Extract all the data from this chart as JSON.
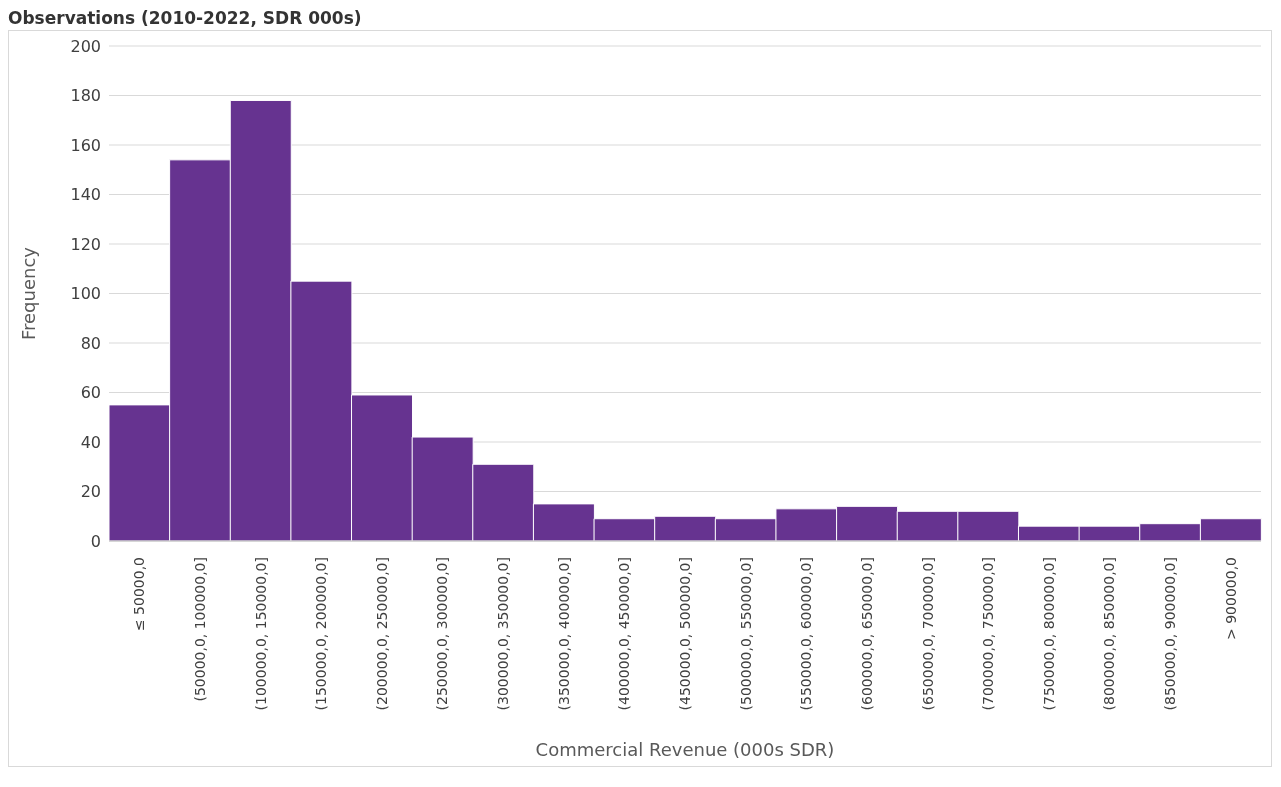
{
  "chart_data": {
    "type": "bar",
    "title": "Observations (2010-2022, SDR 000s)",
    "xlabel": "Commercial Revenue (000s SDR)",
    "ylabel": "Frequency",
    "categories": [
      "≤ 50000,0",
      "(50000,0, 100000,0]",
      "(100000,0, 150000,0]",
      "(150000,0, 200000,0]",
      "(200000,0, 250000,0]",
      "(250000,0, 300000,0]",
      "(300000,0, 350000,0]",
      "(350000,0, 400000,0]",
      "(400000,0, 450000,0]",
      "(450000,0, 500000,0]",
      "(500000,0, 550000,0]",
      "(550000,0, 600000,0]",
      "(600000,0, 650000,0]",
      "(650000,0, 700000,0]",
      "(700000,0, 750000,0]",
      "(750000,0, 800000,0]",
      "(800000,0, 850000,0]",
      "(850000,0, 900000,0]",
      "> 900000,0"
    ],
    "values": [
      55,
      154,
      178,
      105,
      59,
      42,
      31,
      15,
      9,
      10,
      9,
      13,
      14,
      12,
      12,
      6,
      6,
      7,
      9
    ],
    "color": "#663390",
    "ylim": [
      0,
      200
    ],
    "yticks": [
      0,
      20,
      40,
      60,
      80,
      100,
      120,
      140,
      160,
      180,
      200
    ],
    "grid": "y"
  }
}
